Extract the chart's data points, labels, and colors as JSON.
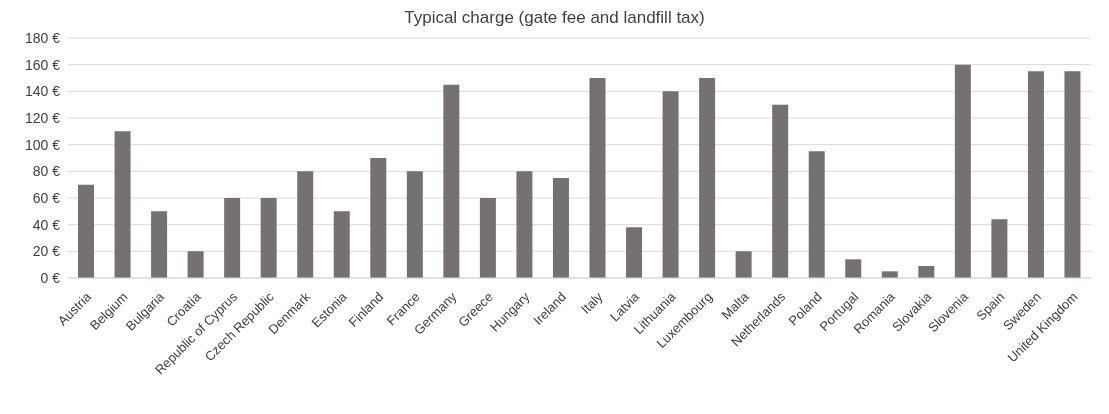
{
  "chart_data": {
    "type": "bar",
    "title": "Typical charge (gate fee and landfill tax)",
    "categories": [
      "Austria",
      "Belgium",
      "Bulgaria",
      "Croatia",
      "Republic of Cyprus",
      "Czech Republic",
      "Denmark",
      "Estonia",
      "Finland",
      "France",
      "Germany",
      "Greece",
      "Hungary",
      "Ireland",
      "Italy",
      "Latvia",
      "Lithuania",
      "Luxembourg",
      "Malta",
      "Netherlands",
      "Poland",
      "Portugal",
      "Romania",
      "Slovakia",
      "Slovenia",
      "Spain",
      "Sweden",
      "United Kingdom"
    ],
    "values": [
      70,
      110,
      50,
      20,
      60,
      60,
      80,
      50,
      90,
      80,
      145,
      60,
      80,
      75,
      150,
      38,
      140,
      150,
      20,
      130,
      95,
      14,
      5,
      9,
      160,
      44,
      155,
      155
    ],
    "color": "#757170",
    "ylim": [
      0,
      180
    ],
    "yticks": [
      {
        "value": 0,
        "label": "0 €"
      },
      {
        "value": 20,
        "label": "20 €"
      },
      {
        "value": 40,
        "label": "40 €"
      },
      {
        "value": 60,
        "label": "60 €"
      },
      {
        "value": 80,
        "label": "80 €"
      },
      {
        "value": 100,
        "label": "100 €"
      },
      {
        "value": 120,
        "label": "120 €"
      },
      {
        "value": 140,
        "label": "140 €"
      },
      {
        "value": 160,
        "label": "160 €"
      },
      {
        "value": 180,
        "label": "180 €"
      }
    ],
    "grid": "y",
    "legend": false
  }
}
